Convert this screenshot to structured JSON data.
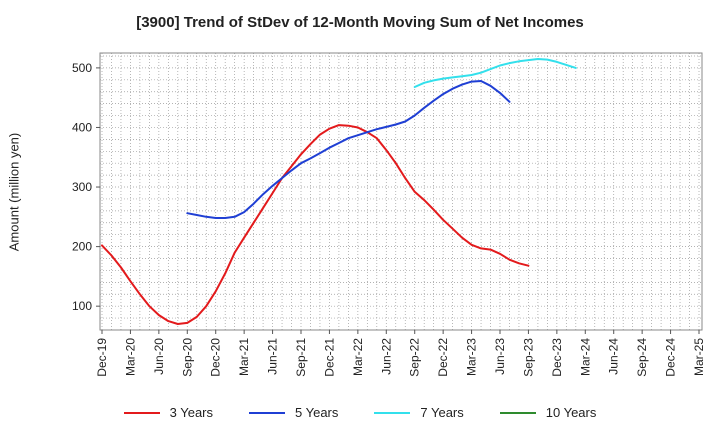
{
  "title": "[3900]  Trend of StDev of 12-Month Moving Sum of Net Incomes",
  "chart_data": {
    "type": "line",
    "ylabel": "Amount (million yen)",
    "xlabel": "",
    "ylim": [
      60,
      525
    ],
    "yticks": [
      100,
      200,
      300,
      400,
      500
    ],
    "x_tick_labels": [
      "Dec-19",
      "Mar-20",
      "Jun-20",
      "Sep-20",
      "Dec-20",
      "Mar-21",
      "Jun-21",
      "Sep-21",
      "Dec-21",
      "Mar-22",
      "Jun-22",
      "Sep-22",
      "Dec-22",
      "Mar-23",
      "Jun-23",
      "Sep-23",
      "Dec-23",
      "Mar-24",
      "Jun-24",
      "Sep-24",
      "Dec-24",
      "Mar-25"
    ],
    "grid": true,
    "legend_position": "bottom",
    "series": [
      {
        "name": "3 Years",
        "color": "#e31a1c",
        "start_index": 0,
        "values": [
          202,
          185,
          165,
          142,
          120,
          100,
          85,
          75,
          70,
          72,
          82,
          100,
          125,
          155,
          190,
          215,
          240,
          265,
          290,
          315,
          335,
          355,
          372,
          388,
          398,
          404,
          403,
          400,
          392,
          382,
          362,
          340,
          315,
          292,
          278,
          262,
          245,
          230,
          215,
          203,
          197,
          195,
          188,
          178,
          172,
          168
        ]
      },
      {
        "name": "5 Years",
        "color": "#1f3fd4",
        "start_index": 9,
        "values": [
          256,
          253,
          250,
          248,
          248,
          250,
          258,
          272,
          288,
          302,
          315,
          328,
          340,
          348,
          357,
          366,
          374,
          382,
          387,
          392,
          397,
          401,
          405,
          410,
          420,
          433,
          445,
          456,
          465,
          472,
          477,
          478,
          470,
          458,
          443
        ]
      },
      {
        "name": "7 Years",
        "color": "#33e0ec",
        "start_index": 33,
        "values": [
          468,
          475,
          479,
          482,
          484,
          486,
          488,
          492,
          498,
          504,
          508,
          511,
          513,
          515,
          514,
          510,
          505,
          500
        ]
      },
      {
        "name": "10 Years",
        "color": "#2e8b2e",
        "start_index": 0,
        "values": []
      }
    ]
  }
}
